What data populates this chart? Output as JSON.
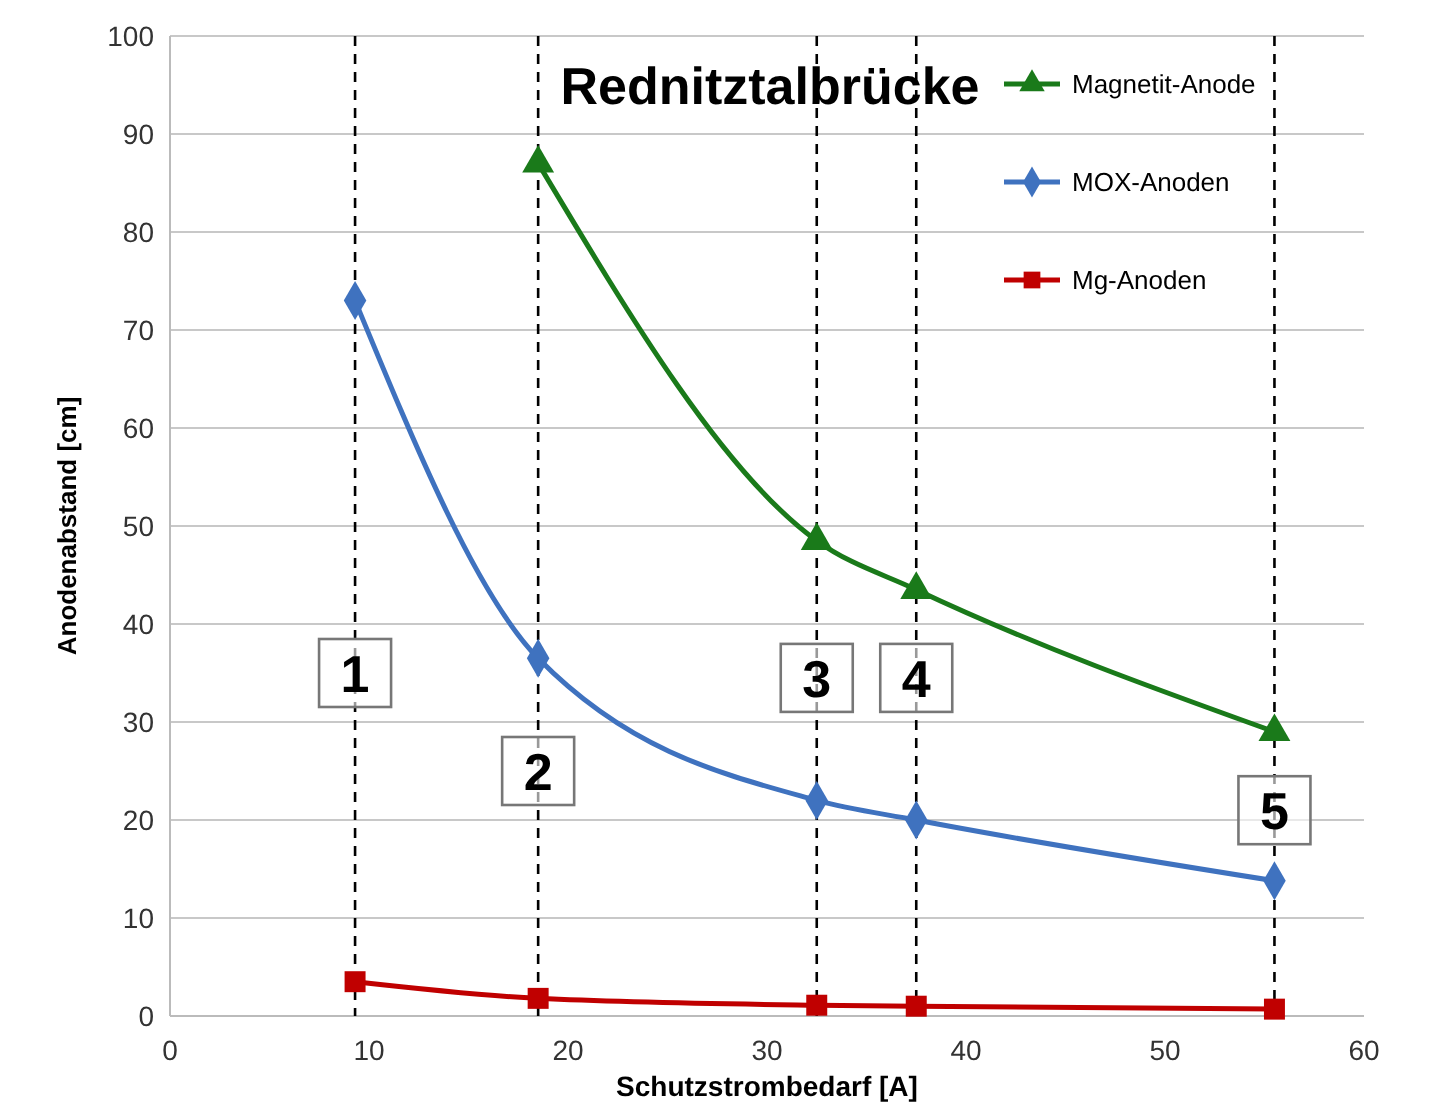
{
  "chart_data": {
    "type": "line",
    "title": "Rednitztalbrücke",
    "xlabel": "Schutzstrombedarf [A]",
    "ylabel": "Anodenabstand [cm]",
    "xlim": [
      0,
      60
    ],
    "xticks": [
      0,
      10,
      20,
      30,
      40,
      50,
      60
    ],
    "ylim": [
      0,
      100
    ],
    "yticks": [
      0,
      10,
      20,
      30,
      40,
      50,
      60,
      70,
      80,
      90,
      100
    ],
    "grid": "y",
    "legend": "top right",
    "series": [
      {
        "name": "Magnetit-Anode",
        "color": "#1a7a1a",
        "marker": "triangle",
        "x": [
          18.5,
          32.5,
          37.5,
          55.5
        ],
        "values": [
          87,
          48.5,
          43.5,
          29
        ]
      },
      {
        "name": "MOX-Anoden",
        "color": "#3f72bf",
        "marker": "diamond",
        "x": [
          9.3,
          18.5,
          32.5,
          37.5,
          55.5
        ],
        "values": [
          73,
          36.5,
          22,
          20,
          13.8
        ]
      },
      {
        "name": "Mg-Anoden",
        "color": "#c00000",
        "marker": "square",
        "x": [
          9.3,
          18.5,
          32.5,
          37.5,
          55.5
        ],
        "values": [
          3.5,
          1.8,
          1.1,
          1.0,
          0.7
        ]
      }
    ],
    "ref_lines": [
      {
        "axis": "x",
        "value": 9.3,
        "line_style": "dashed",
        "color": "#000000"
      },
      {
        "axis": "x",
        "value": 18.5,
        "line_style": "dashed",
        "color": "#000000"
      },
      {
        "axis": "x",
        "value": 32.5,
        "line_style": "dashed",
        "color": "#000000"
      },
      {
        "axis": "x",
        "value": 37.5,
        "line_style": "dashed",
        "color": "#000000"
      },
      {
        "axis": "x",
        "value": 55.5,
        "line_style": "dashed",
        "color": "#000000"
      }
    ],
    "annotations": [
      {
        "text": "1",
        "x": 9.3,
        "y": 35
      },
      {
        "text": "2",
        "x": 18.5,
        "y": 25
      },
      {
        "text": "3",
        "x": 32.5,
        "y": 34.5
      },
      {
        "text": "4",
        "x": 37.5,
        "y": 34.5
      },
      {
        "text": "5",
        "x": 55.5,
        "y": 21
      }
    ]
  }
}
